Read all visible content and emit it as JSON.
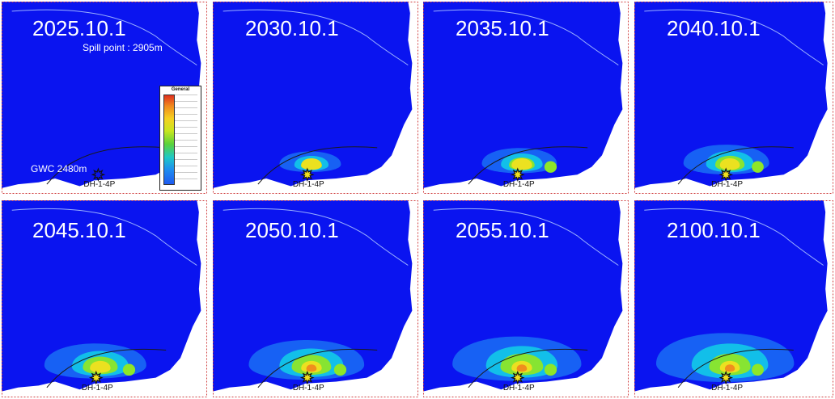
{
  "panels": [
    {
      "date": "2025.10.1",
      "plume": 0
    },
    {
      "date": "2030.10.1",
      "plume": 1
    },
    {
      "date": "2035.10.1",
      "plume": 2
    },
    {
      "date": "2040.10.1",
      "plume": 3
    },
    {
      "date": "2045.10.1",
      "plume": 4
    },
    {
      "date": "2050.10.1",
      "plume": 5
    },
    {
      "date": "2055.10.1",
      "plume": 6
    },
    {
      "date": "2100.10.1",
      "plume": 7
    }
  ],
  "annotations": {
    "spill_point": "Spill point : 2905m",
    "gwc": "GWC 2480m",
    "well_name": "DH-1-4P"
  },
  "legend": {
    "title": "General"
  },
  "colors": {
    "background": "#0a14f0",
    "plume_outer": "#1a6ef5",
    "plume_mid": "#12c4e8",
    "plume_inner": "#8ee628",
    "plume_core": "#f0e020",
    "plume_hot": "#f08a1e",
    "boundary": "#ffffff",
    "contour": "#1a1a1a"
  },
  "icons": {
    "well": "sun-burst-well-icon"
  }
}
